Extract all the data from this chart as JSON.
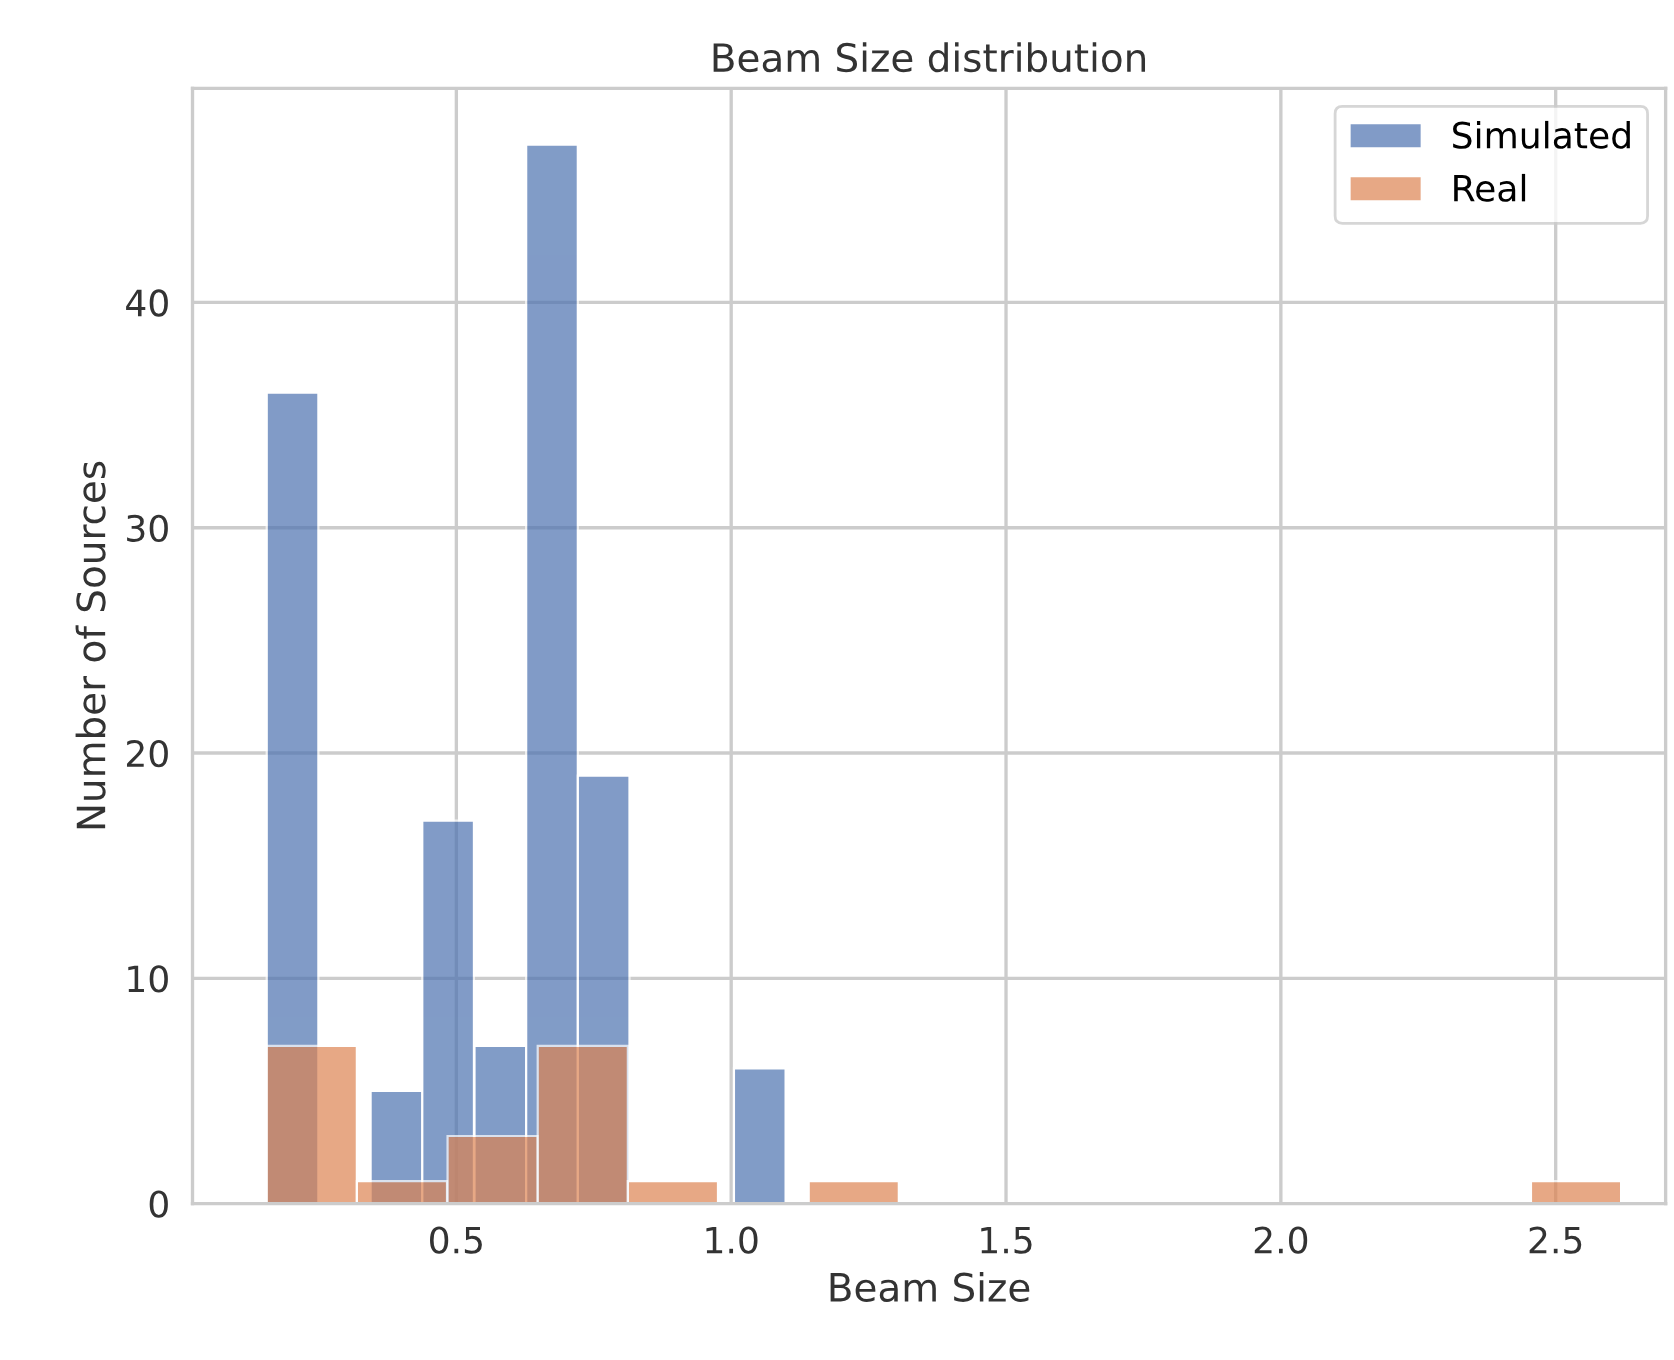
{
  "chart_data": {
    "type": "bar",
    "title": "Beam Size distribution",
    "xlabel": "Beam Size",
    "ylabel": "Number of Sources",
    "series": [
      {
        "name": "Simulated",
        "color": "#4c72b0",
        "x": [
          0.202,
          0.296,
          0.391,
          0.485,
          0.58,
          0.674,
          0.768,
          0.863,
          0.957,
          1.052
        ],
        "values": [
          36,
          null,
          5,
          17,
          7,
          47,
          19,
          null,
          null,
          6
        ]
      },
      {
        "name": "Real",
        "color": "#dd8452",
        "x": [
          0.237,
          0.401,
          0.566,
          0.73,
          0.894,
          1.059,
          1.223,
          1.387,
          1.551,
          1.716,
          1.88,
          2.044,
          2.209,
          2.373,
          2.537
        ],
        "values": [
          7,
          1,
          3,
          7,
          1,
          null,
          1,
          null,
          null,
          null,
          null,
          null,
          null,
          null,
          1
        ]
      }
    ],
    "xlim": [
      0.02,
      2.7
    ],
    "xticks": [
      0.5,
      {
        "value": 1,
        "label": "1.0"
      },
      1.5,
      {
        "value": 2,
        "label": "2.0"
      },
      2.5
    ],
    "ylim": [
      0,
      49.5
    ],
    "yticks": [
      0,
      10,
      20,
      30,
      40
    ],
    "grid": true,
    "legend": "top right"
  }
}
